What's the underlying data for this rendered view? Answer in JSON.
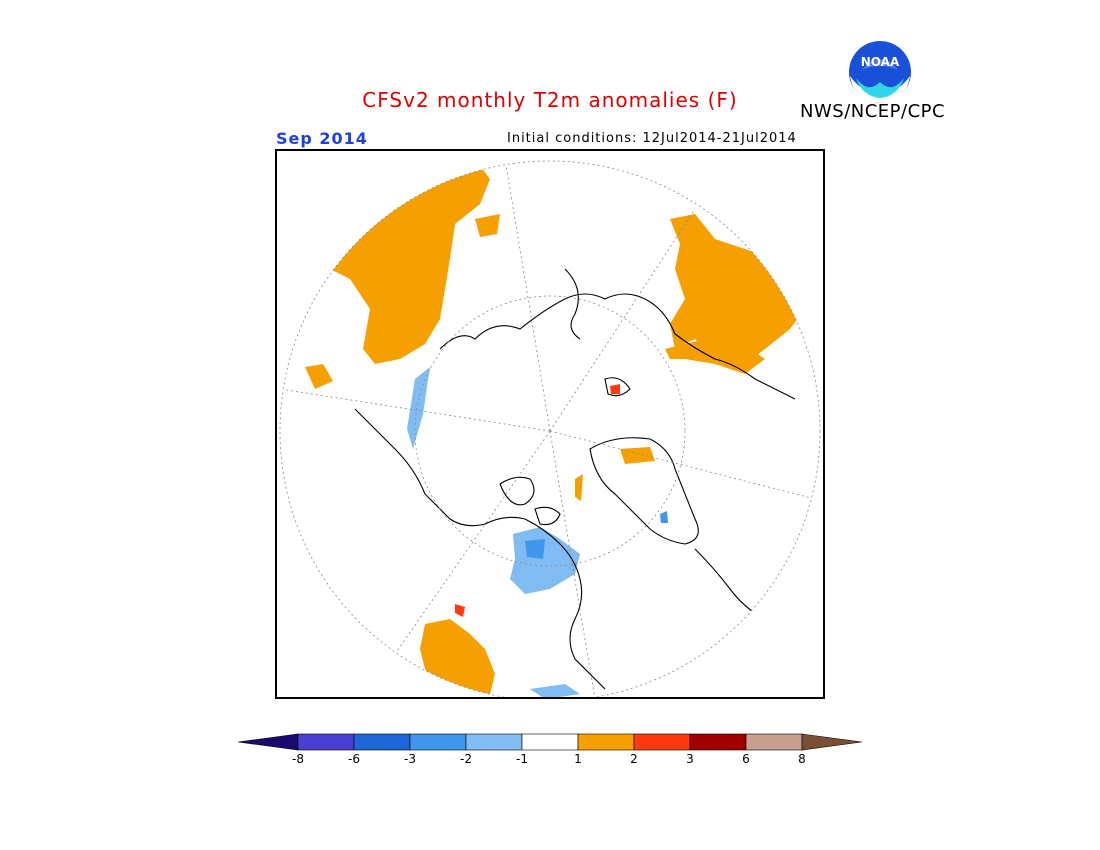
{
  "header": {
    "title": "CFSv2 monthly T2m anomalies (F)",
    "title_color": "#e00000",
    "month": "Sep 2014",
    "month_color": "#2040e0",
    "initial_conditions": "Initial conditions: 12Jul2014-21Jul2014",
    "agency": "NWS/NCEP/CPC",
    "logo_text": "NOAA"
  },
  "colorbar": {
    "labels": [
      "-8",
      "-6",
      "-3",
      "-2",
      "-1",
      "1",
      "2",
      "3",
      "6",
      "8"
    ],
    "colors": [
      "#1a0a6e",
      "#4a3fd0",
      "#1f66d6",
      "#3f96ec",
      "#80bcf2",
      "#ffffff",
      "#f5a000",
      "#ff3a10",
      "#a00000",
      "#c8a090",
      "#7a4f35"
    ]
  },
  "map": {
    "projection": "north-polar-stereographic",
    "warm_color": "#f5a000",
    "cool_color": "#80bcf2",
    "strong_cool_color": "#3f96ec",
    "hot_color": "#ff3a10"
  }
}
